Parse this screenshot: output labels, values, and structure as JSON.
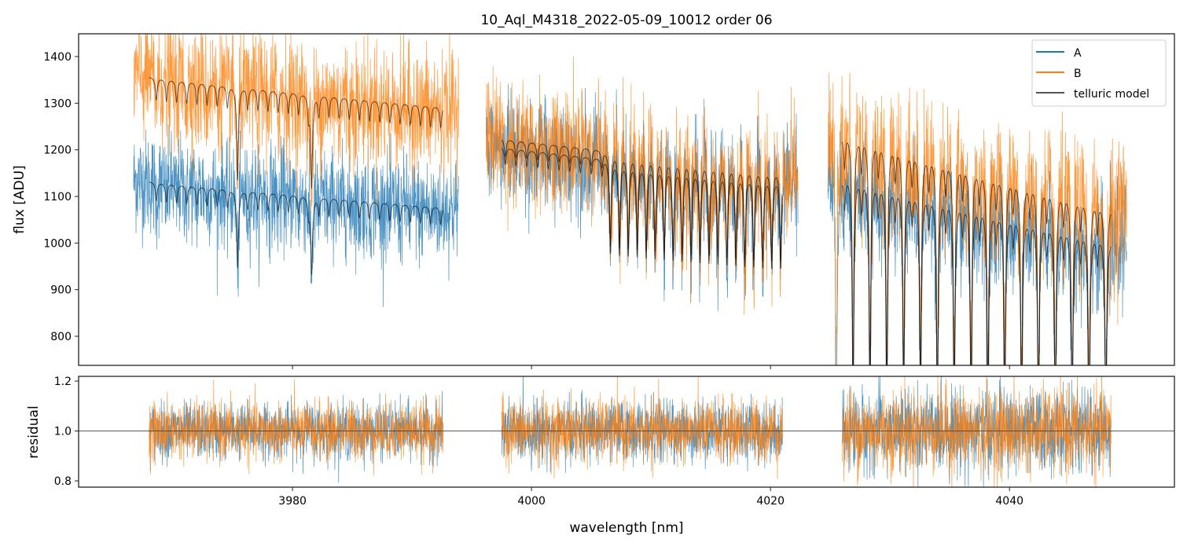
{
  "chart_data": {
    "type": "line",
    "title": "10_Aql_M4318_2022-05-09_10012  order 06",
    "xlabel": "wavelength [nm]",
    "xlim": [
      3962.1,
      4053.8
    ],
    "xticks": [
      3980,
      4000,
      4020,
      4040
    ],
    "panels": [
      {
        "ylabel": "flux [ADU]",
        "ylim": [
          737.6,
          1448.9
        ],
        "yticks": [
          800,
          900,
          1000,
          1100,
          1200,
          1300,
          1400
        ]
      },
      {
        "ylabel": "residual",
        "ylim": [
          0.775,
          1.219
        ],
        "yticks": [
          0.8,
          1.0,
          1.2
        ],
        "yticks_labels": [
          "0.8",
          "1.0",
          "1.2"
        ],
        "hline": 1.0
      }
    ],
    "legend": {
      "placement": "top-right",
      "entries": [
        {
          "label": "A",
          "color": "#1f77b4"
        },
        {
          "label": "B",
          "color": "#ff7f0e"
        },
        {
          "label": "telluric model",
          "color": "#555555"
        }
      ]
    },
    "segments": [
      {
        "data_range": [
          3966.7,
          3993.9
        ],
        "model_range": [
          3968.0,
          3992.6
        ],
        "A_continuum": [
          1135,
          1075
        ],
        "B_continuum": [
          1360,
          1290
        ],
        "noise_A": 55,
        "noise_B": 65,
        "residual_noise": 0.055
      },
      {
        "data_range": [
          3996.2,
          4022.3
        ],
        "model_range": [
          3997.5,
          4021.0
        ],
        "A_continuum": [
          1210,
          1140
        ],
        "B_continuum": [
          1228,
          1160
        ],
        "noise_A": 55,
        "noise_B": 65,
        "residual_noise": 0.06
      },
      {
        "data_range": [
          4024.8,
          4049.8
        ],
        "model_range": [
          4026.0,
          4048.5
        ],
        "A_continuum": [
          1165,
          1010
        ],
        "B_continuum": [
          1262,
          1080
        ],
        "noise_A": 60,
        "noise_B": 75,
        "residual_noise": 0.08
      }
    ],
    "telluric_lines": [
      {
        "start": 3968.6,
        "end": 3993,
        "step": 0.85,
        "depth": 0.035
      },
      {
        "start": 3975.4,
        "end": 3975.5,
        "step": 1,
        "depth": 0.12
      },
      {
        "start": 3981.6,
        "end": 3981.7,
        "step": 1,
        "depth": 0.15
      },
      {
        "start": 3997.8,
        "end": 4006,
        "step": 0.9,
        "depth": 0.03
      },
      {
        "start": 4006.6,
        "end": 4021,
        "step": 0.75,
        "depth": 0.17
      },
      {
        "start": 4025.5,
        "end": 4049,
        "step": 1.41,
        "depth": 0.42
      },
      {
        "start": 4026.2,
        "end": 4049,
        "step": 1.41,
        "depth": 0.06
      }
    ]
  }
}
